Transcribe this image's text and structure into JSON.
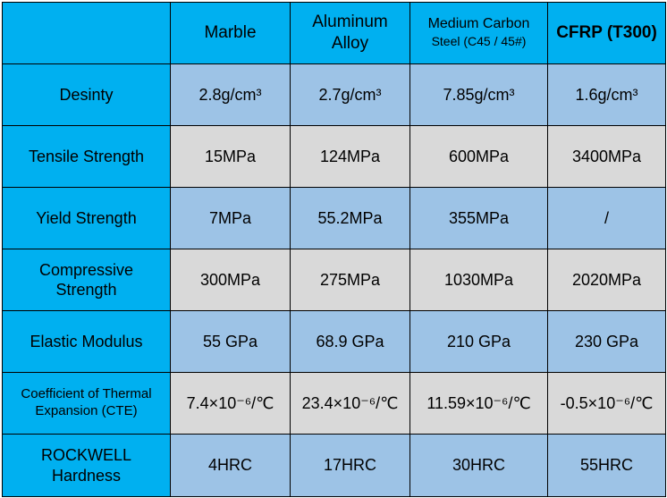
{
  "header": {
    "corner": "",
    "columns": [
      {
        "line1": "Marble",
        "line2": ""
      },
      {
        "line1": "Aluminum",
        "line2": "Alloy"
      },
      {
        "line1": "Medium Carbon",
        "line2": "Steel (C45 / 45#)"
      },
      {
        "line1": "CFRP (T300)",
        "line2": ""
      }
    ]
  },
  "rows": [
    {
      "label": "Desinty",
      "label2": "",
      "values": [
        "2.8g/cm³",
        "2.7g/cm³",
        "7.85g/cm³",
        "1.6g/cm³"
      ]
    },
    {
      "label": "Tensile Strength",
      "label2": "",
      "values": [
        "15MPa",
        "124MPa",
        "600MPa",
        "3400MPa"
      ]
    },
    {
      "label": "Yield Strength",
      "label2": "",
      "values": [
        "7MPa",
        "55.2MPa",
        "355MPa",
        "/"
      ]
    },
    {
      "label": "Compressive",
      "label2": "Strength",
      "values": [
        "300MPa",
        "275MPa",
        "1030MPa",
        "2020MPa"
      ]
    },
    {
      "label": "Elastic Modulus",
      "label2": "",
      "values": [
        "55 GPa",
        "68.9 GPa",
        "210 GPa",
        "230 GPa"
      ]
    },
    {
      "label": "Coefficient of Thermal",
      "label2": "Expansion (CTE)",
      "values": [
        "7.4×10⁻⁶/℃",
        "23.4×10⁻⁶/℃",
        "11.59×10⁻⁶/℃",
        "-0.5×10⁻⁶/℃"
      ]
    },
    {
      "label": "ROCKWELL",
      "label2": "Hardness",
      "values": [
        "4HRC",
        "17HRC",
        "30HRC",
        "55HRC"
      ]
    }
  ],
  "colors": {
    "header": "#00b0f0",
    "band_a": "#9dc3e6",
    "band_b": "#d9d9d9",
    "border": "#000000"
  }
}
